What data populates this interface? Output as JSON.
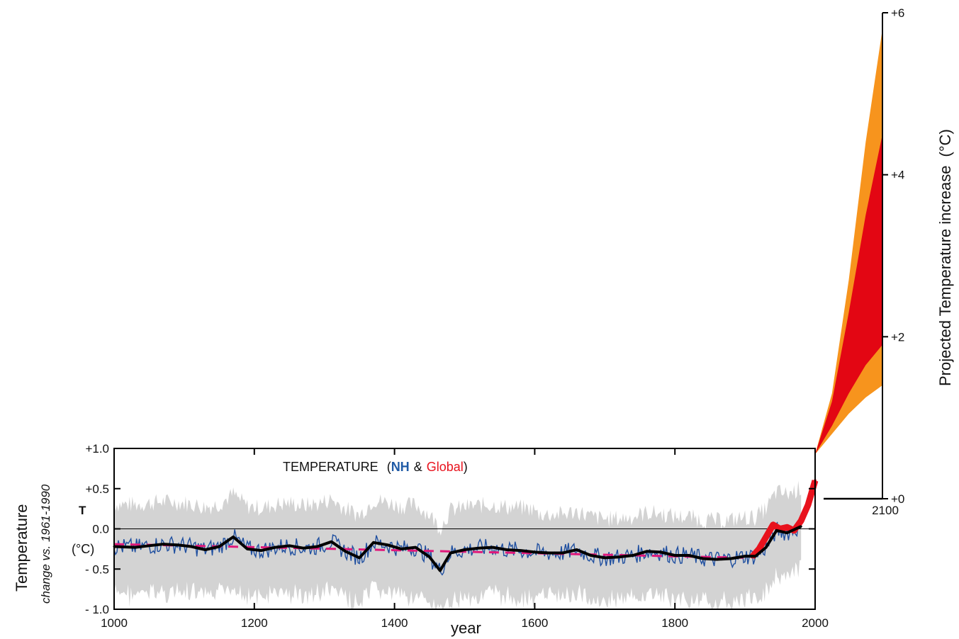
{
  "chart_data": [
    {
      "type": "line",
      "title": "TEMPERATURE",
      "title_parts": {
        "open": "(",
        "nh": "NH",
        "amp": "&",
        "global": "Global",
        "close": ")"
      },
      "ylabel": "Temperature",
      "ylabel_sub": "change vs. 1961-1990",
      "ylabel_symbol": "T",
      "ylabel_unit": "(°C)",
      "xlabel": "year",
      "xlim": [
        1000,
        2000
      ],
      "ylim": [
        -1.0,
        1.0
      ],
      "x_ticks": [
        "1000",
        "1200",
        "1400",
        "1600",
        "1800",
        "2000"
      ],
      "y_ticks": [
        "+1.0",
        "+0.5",
        "0.0",
        "- 0.5",
        "- 1.0"
      ],
      "zero_line": 0.0,
      "series": [
        {
          "name": "NH",
          "role": "smoothed reconstruction",
          "color": "#000000",
          "x": [
            1000,
            1030,
            1050,
            1070,
            1090,
            1110,
            1130,
            1150,
            1170,
            1190,
            1210,
            1230,
            1250,
            1270,
            1290,
            1310,
            1330,
            1350,
            1370,
            1390,
            1410,
            1430,
            1450,
            1465,
            1480,
            1500,
            1520,
            1540,
            1560,
            1580,
            1600,
            1620,
            1640,
            1660,
            1680,
            1700,
            1720,
            1740,
            1760,
            1780,
            1800,
            1820,
            1840,
            1860,
            1880,
            1900,
            1915,
            1930,
            1945,
            1960,
            1980
          ],
          "values": [
            -0.22,
            -0.23,
            -0.21,
            -0.19,
            -0.2,
            -0.22,
            -0.26,
            -0.22,
            -0.1,
            -0.25,
            -0.27,
            -0.23,
            -0.21,
            -0.24,
            -0.22,
            -0.16,
            -0.28,
            -0.36,
            -0.17,
            -0.2,
            -0.25,
            -0.23,
            -0.35,
            -0.52,
            -0.3,
            -0.26,
            -0.24,
            -0.23,
            -0.26,
            -0.27,
            -0.29,
            -0.3,
            -0.3,
            -0.26,
            -0.33,
            -0.36,
            -0.35,
            -0.33,
            -0.28,
            -0.29,
            -0.33,
            -0.33,
            -0.37,
            -0.38,
            -0.37,
            -0.34,
            -0.34,
            -0.23,
            -0.02,
            -0.05,
            0.03
          ]
        },
        {
          "name": "NH linear trend",
          "role": "dashed trend",
          "color": "#e0187a",
          "x": [
            1000,
            1900
          ],
          "values": [
            -0.19,
            -0.36
          ]
        },
        {
          "name": "Global",
          "role": "instrumental record",
          "color": "#e8121d",
          "x": [
            1910,
            1920,
            1930,
            1940,
            1950,
            1960,
            1970,
            1980,
            1990,
            2000
          ],
          "values": [
            -0.35,
            -0.25,
            -0.1,
            0.05,
            0.0,
            0.02,
            -0.02,
            0.1,
            0.3,
            0.6
          ]
        }
      ]
    },
    {
      "type": "area",
      "ylabel": "Projected Temperature increase",
      "ylabel_unit": "(°C)",
      "xlim": [
        2000,
        2100
      ],
      "ylim": [
        0,
        6
      ],
      "x_ticks": [
        "2100"
      ],
      "y_ticks": [
        "+6",
        "+4",
        "+2",
        "+0"
      ],
      "series": [
        {
          "name": "outer range",
          "color": "#f7941d",
          "x": [
            2000,
            2025,
            2050,
            2075,
            2100
          ],
          "upper": [
            0.55,
            1.3,
            2.7,
            4.4,
            5.8
          ],
          "lower": [
            0.55,
            0.8,
            1.05,
            1.25,
            1.4
          ]
        },
        {
          "name": "inner range",
          "color": "#e30613",
          "x": [
            2000,
            2025,
            2050,
            2075,
            2100
          ],
          "upper": [
            0.55,
            1.2,
            2.3,
            3.5,
            4.5
          ],
          "lower": [
            0.55,
            0.9,
            1.3,
            1.65,
            1.9
          ]
        }
      ]
    }
  ]
}
